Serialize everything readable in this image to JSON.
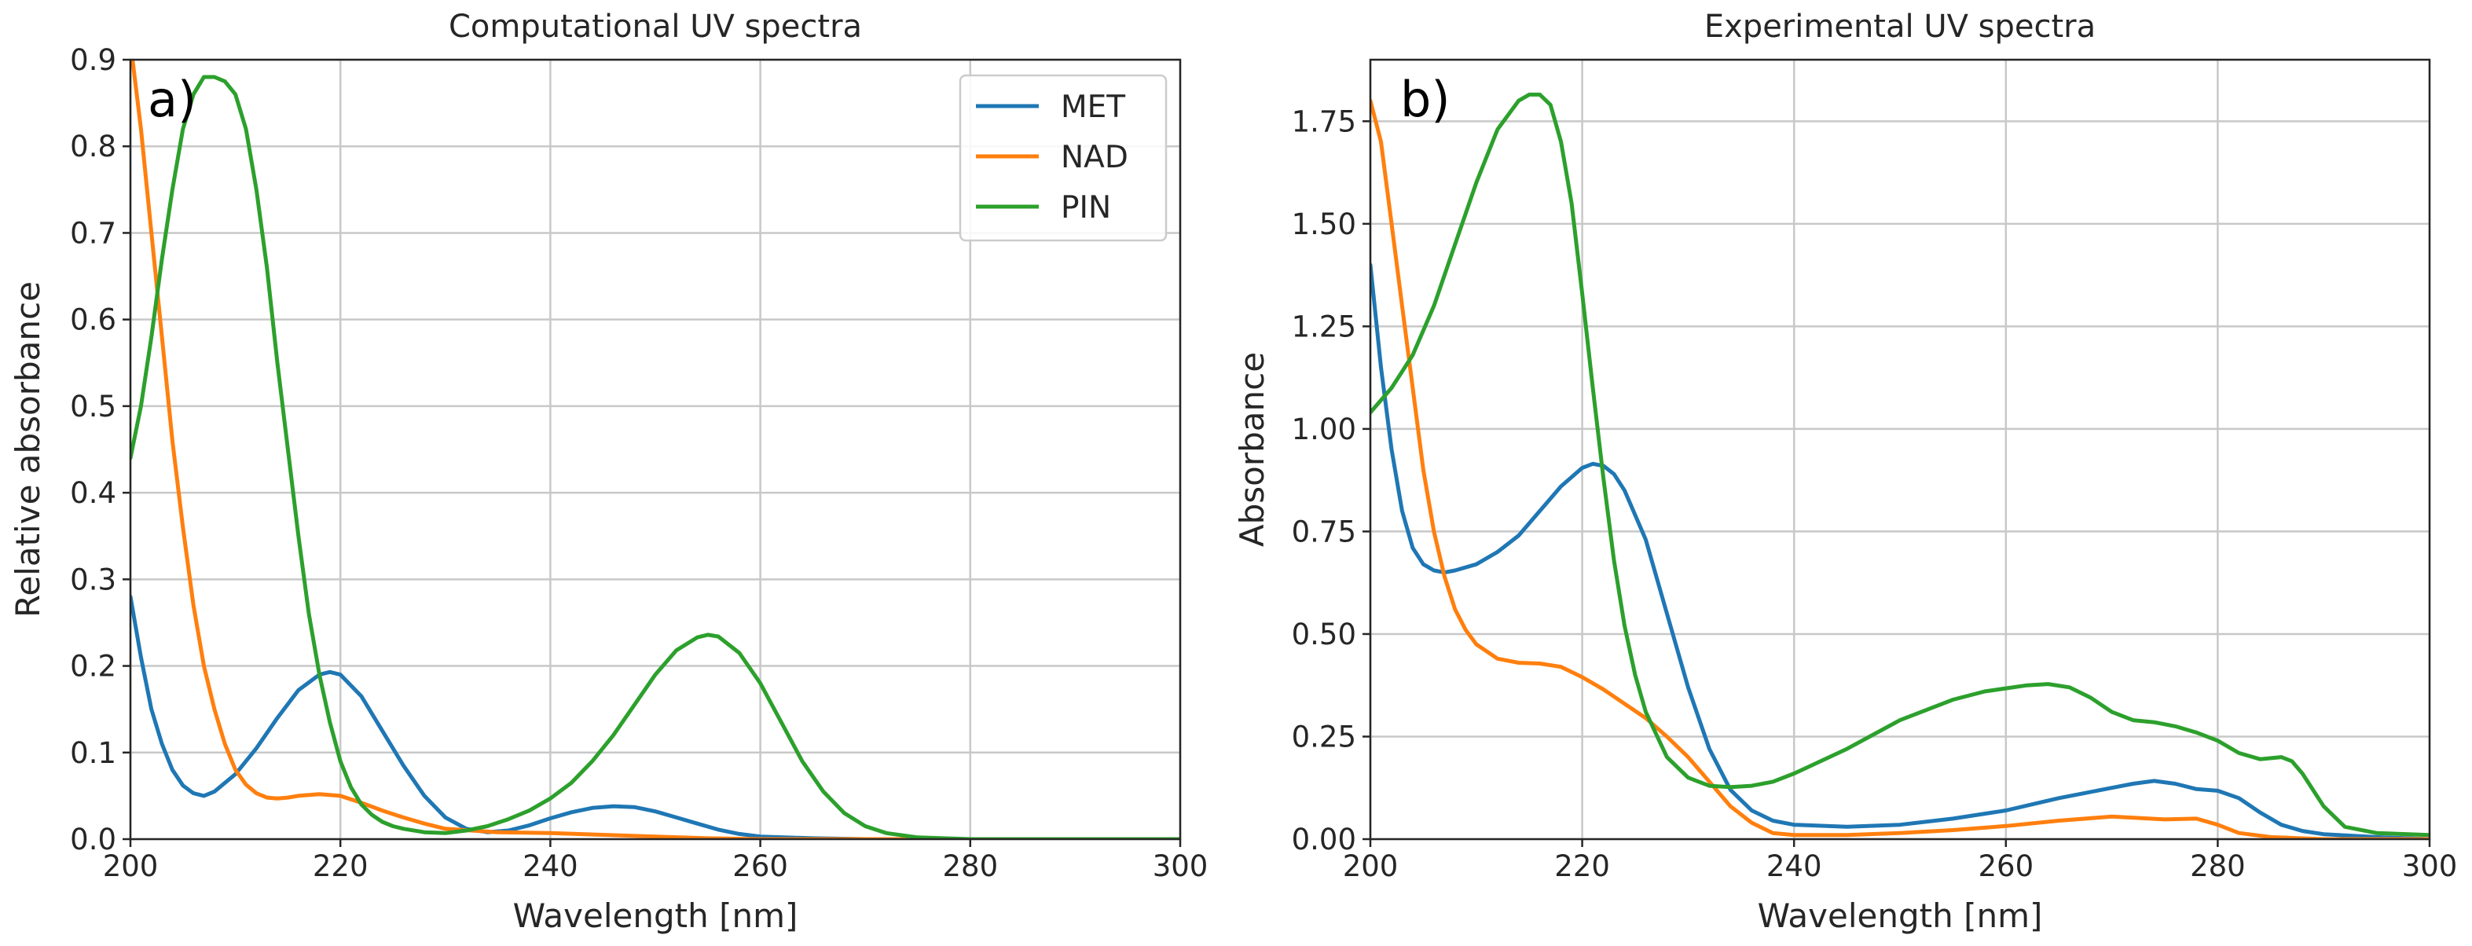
{
  "chart_data": [
    {
      "type": "line",
      "panel_label": "a)",
      "title": "Computational UV spectra",
      "xlabel": "Wavelength [nm]",
      "ylabel": "Relative absorbance",
      "xlim": [
        200,
        300
      ],
      "ylim": [
        0,
        0.9
      ],
      "xticks": [
        "200",
        "220",
        "240",
        "260",
        "280",
        "300"
      ],
      "yticks": [
        "0.0",
        "0.1",
        "0.2",
        "0.3",
        "0.4",
        "0.5",
        "0.6",
        "0.7",
        "0.8",
        "0.9"
      ],
      "grid": true,
      "legend": {
        "position": "upper-right",
        "entries": [
          "MET",
          "NAD",
          "PIN"
        ]
      },
      "series": [
        {
          "name": "MET",
          "color": "#1f77b4",
          "x": [
            200,
            201,
            202,
            203,
            204,
            205,
            206,
            207,
            208,
            210,
            212,
            214,
            216,
            218,
            219,
            220,
            222,
            224,
            226,
            228,
            230,
            232,
            234,
            236,
            238,
            240,
            242,
            244,
            246,
            248,
            250,
            252,
            254,
            256,
            258,
            260,
            265,
            270,
            300
          ],
          "y": [
            0.28,
            0.21,
            0.15,
            0.11,
            0.08,
            0.062,
            0.053,
            0.05,
            0.055,
            0.075,
            0.105,
            0.14,
            0.172,
            0.19,
            0.193,
            0.19,
            0.165,
            0.125,
            0.085,
            0.05,
            0.025,
            0.012,
            0.008,
            0.01,
            0.016,
            0.024,
            0.031,
            0.036,
            0.038,
            0.037,
            0.032,
            0.025,
            0.018,
            0.011,
            0.006,
            0.003,
            0.001,
            0.0,
            0.0
          ]
        },
        {
          "name": "NAD",
          "color": "#ff7f0e",
          "x": [
            200,
            201,
            202,
            203,
            204,
            205,
            206,
            207,
            208,
            209,
            210,
            211,
            212,
            213,
            214,
            215,
            216,
            218,
            220,
            222,
            224,
            226,
            228,
            230,
            235,
            240,
            245,
            250,
            255,
            260,
            300
          ],
          "y": [
            0.92,
            0.82,
            0.7,
            0.58,
            0.46,
            0.36,
            0.27,
            0.2,
            0.15,
            0.11,
            0.08,
            0.063,
            0.053,
            0.048,
            0.047,
            0.048,
            0.05,
            0.052,
            0.05,
            0.042,
            0.033,
            0.025,
            0.018,
            0.012,
            0.008,
            0.007,
            0.005,
            0.003,
            0.001,
            0.0,
            0.0
          ]
        },
        {
          "name": "PIN",
          "color": "#2ca02c",
          "x": [
            200,
            201,
            202,
            203,
            204,
            205,
            206,
            207,
            208,
            209,
            210,
            211,
            212,
            213,
            214,
            215,
            216,
            217,
            218,
            219,
            220,
            221,
            222,
            223,
            224,
            225,
            226,
            228,
            230,
            232,
            234,
            236,
            238,
            240,
            242,
            244,
            246,
            248,
            250,
            252,
            254,
            255,
            256,
            258,
            260,
            262,
            264,
            266,
            268,
            270,
            272,
            275,
            280,
            300
          ],
          "y": [
            0.44,
            0.5,
            0.58,
            0.67,
            0.75,
            0.82,
            0.86,
            0.88,
            0.88,
            0.875,
            0.86,
            0.82,
            0.75,
            0.66,
            0.55,
            0.45,
            0.35,
            0.26,
            0.19,
            0.135,
            0.09,
            0.06,
            0.04,
            0.028,
            0.02,
            0.015,
            0.012,
            0.008,
            0.007,
            0.01,
            0.015,
            0.023,
            0.033,
            0.047,
            0.065,
            0.09,
            0.12,
            0.155,
            0.19,
            0.218,
            0.233,
            0.236,
            0.234,
            0.215,
            0.18,
            0.135,
            0.09,
            0.055,
            0.03,
            0.015,
            0.007,
            0.002,
            0.0,
            0.0
          ]
        }
      ]
    },
    {
      "type": "line",
      "panel_label": "b)",
      "title": "Experimental UV spectra",
      "xlabel": "Wavelength [nm]",
      "ylabel": "Absorbance",
      "xlim": [
        200,
        300
      ],
      "ylim": [
        0,
        1.9
      ],
      "xticks": [
        "200",
        "220",
        "240",
        "260",
        "280",
        "300"
      ],
      "yticks": [
        "0.00",
        "0.25",
        "0.50",
        "0.75",
        "1.00",
        "1.25",
        "1.50",
        "1.75"
      ],
      "grid": true,
      "series": [
        {
          "name": "MET",
          "color": "#1f77b4",
          "x": [
            200,
            201,
            202,
            203,
            204,
            205,
            206,
            207,
            208,
            210,
            212,
            214,
            216,
            218,
            220,
            221,
            222,
            223,
            224,
            226,
            228,
            230,
            232,
            234,
            236,
            238,
            240,
            245,
            250,
            255,
            260,
            265,
            270,
            272,
            274,
            276,
            278,
            280,
            282,
            284,
            286,
            288,
            290,
            295,
            300
          ],
          "y": [
            1.4,
            1.15,
            0.95,
            0.8,
            0.71,
            0.67,
            0.655,
            0.65,
            0.655,
            0.67,
            0.7,
            0.74,
            0.8,
            0.86,
            0.905,
            0.915,
            0.91,
            0.89,
            0.85,
            0.73,
            0.55,
            0.37,
            0.22,
            0.12,
            0.07,
            0.045,
            0.035,
            0.03,
            0.035,
            0.05,
            0.07,
            0.1,
            0.125,
            0.135,
            0.142,
            0.135,
            0.122,
            0.118,
            0.1,
            0.065,
            0.035,
            0.02,
            0.012,
            0.005,
            0.0
          ]
        },
        {
          "name": "NAD",
          "color": "#ff7f0e",
          "x": [
            200,
            201,
            202,
            203,
            204,
            205,
            206,
            207,
            208,
            209,
            210,
            212,
            214,
            216,
            218,
            220,
            222,
            224,
            226,
            228,
            230,
            232,
            234,
            236,
            238,
            240,
            245,
            250,
            255,
            260,
            265,
            270,
            275,
            278,
            280,
            282,
            285,
            290,
            300
          ],
          "y": [
            1.8,
            1.7,
            1.5,
            1.3,
            1.1,
            0.9,
            0.75,
            0.64,
            0.56,
            0.51,
            0.475,
            0.44,
            0.43,
            0.428,
            0.42,
            0.395,
            0.365,
            0.33,
            0.295,
            0.25,
            0.2,
            0.14,
            0.08,
            0.04,
            0.015,
            0.01,
            0.01,
            0.015,
            0.022,
            0.032,
            0.045,
            0.055,
            0.048,
            0.05,
            0.035,
            0.015,
            0.005,
            0.0,
            0.0
          ]
        },
        {
          "name": "PIN",
          "color": "#2ca02c",
          "x": [
            200,
            202,
            204,
            206,
            208,
            210,
            212,
            214,
            215,
            216,
            217,
            218,
            219,
            220,
            221,
            222,
            223,
            224,
            225,
            226,
            228,
            230,
            232,
            234,
            236,
            238,
            240,
            245,
            250,
            255,
            258,
            262,
            264,
            266,
            268,
            270,
            272,
            274,
            276,
            278,
            280,
            282,
            284,
            286,
            287,
            288,
            290,
            292,
            295,
            300
          ],
          "y": [
            1.04,
            1.1,
            1.18,
            1.3,
            1.45,
            1.6,
            1.73,
            1.8,
            1.815,
            1.815,
            1.79,
            1.7,
            1.55,
            1.33,
            1.1,
            0.88,
            0.68,
            0.52,
            0.4,
            0.31,
            0.2,
            0.15,
            0.13,
            0.127,
            0.13,
            0.14,
            0.16,
            0.22,
            0.29,
            0.34,
            0.36,
            0.375,
            0.378,
            0.37,
            0.345,
            0.31,
            0.29,
            0.285,
            0.275,
            0.26,
            0.24,
            0.21,
            0.195,
            0.2,
            0.19,
            0.16,
            0.08,
            0.03,
            0.015,
            0.01
          ]
        }
      ]
    }
  ]
}
